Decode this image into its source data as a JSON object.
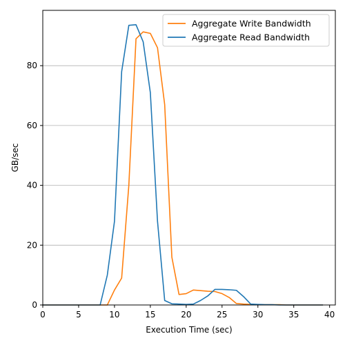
{
  "chart_data": {
    "type": "line",
    "xlabel": "Execution Time (sec)",
    "ylabel": "GB/sec",
    "xlim": [
      0,
      40.8
    ],
    "ylim": [
      0,
      98.5
    ],
    "xticks": [
      0,
      5,
      10,
      15,
      20,
      25,
      30,
      35,
      40
    ],
    "yticks": [
      0,
      20,
      40,
      60,
      80
    ],
    "grid": "horizontal",
    "legend_position": "top-right",
    "series": [
      {
        "name": "Aggregate Write Bandwidth",
        "color": "#ff7f0e",
        "x": [
          0,
          1,
          2,
          3,
          4,
          5,
          6,
          7,
          8,
          9,
          10,
          11,
          12,
          13,
          14,
          15,
          16,
          17,
          18,
          19,
          20,
          21,
          22,
          23,
          24,
          25,
          26,
          27,
          28,
          29,
          30,
          31,
          32,
          33,
          34,
          35,
          36,
          37,
          38,
          39
        ],
        "y": [
          0,
          0,
          0,
          0,
          0,
          0,
          0,
          0,
          0,
          0,
          5,
          9,
          40,
          89,
          91.3,
          90.8,
          86,
          67,
          16,
          3.5,
          3.8,
          5,
          4.8,
          4.6,
          4.5,
          3.8,
          2.5,
          0.5,
          0.3,
          0.2,
          0.1,
          0.1,
          0.1,
          0.1,
          0,
          0,
          0,
          0,
          0,
          0
        ]
      },
      {
        "name": "Aggregate Read Bandwidth",
        "color": "#1f77b4",
        "x": [
          0,
          1,
          2,
          3,
          4,
          5,
          6,
          7,
          8,
          9,
          10,
          11,
          12,
          13,
          14,
          15,
          16,
          17,
          18,
          19,
          20,
          21,
          22,
          23,
          24,
          25,
          26,
          27,
          28,
          29,
          30,
          31,
          32,
          33,
          34,
          35,
          36,
          37,
          38,
          39
        ],
        "y": [
          0,
          0,
          0,
          0,
          0,
          0,
          0,
          0,
          0,
          10,
          28,
          78,
          93.5,
          93.7,
          88,
          71,
          28,
          1.5,
          0.4,
          0.3,
          0.2,
          0.3,
          1.5,
          3,
          5.2,
          5.2,
          5.1,
          4.9,
          2.8,
          0.3,
          0.2,
          0.1,
          0.1,
          0,
          0,
          0,
          0,
          0,
          0,
          0
        ]
      }
    ]
  }
}
